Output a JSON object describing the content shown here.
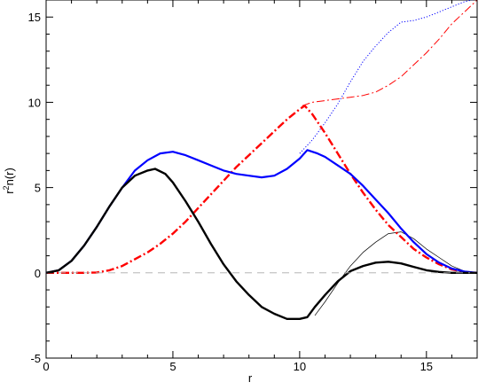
{
  "chart_data": {
    "type": "line",
    "xlabel": "r",
    "ylabel": "r²n(r)",
    "ylabel_base": "r",
    "ylabel_sup": "2",
    "ylabel_rest": "n(r)",
    "xlim": [
      0,
      17
    ],
    "ylim": [
      -5,
      16
    ],
    "xticks": [
      0,
      5,
      10,
      15
    ],
    "yticks": [
      -5,
      0,
      5,
      10,
      15
    ],
    "grid": false,
    "legend": "none",
    "series": [
      {
        "color": "#0000ff",
        "style": "dotted",
        "width": 1,
        "points": [
          [
            10,
            7.0
          ],
          [
            10.5,
            7.8
          ],
          [
            11,
            8.8
          ],
          [
            11.5,
            9.9
          ],
          [
            12,
            11.2
          ],
          [
            12.5,
            12.4
          ],
          [
            13,
            13.3
          ],
          [
            13.5,
            14.1
          ],
          [
            14,
            14.7
          ],
          [
            14.5,
            14.8
          ],
          [
            15,
            15.0
          ],
          [
            15.5,
            15.3
          ],
          [
            16,
            15.6
          ],
          [
            16.5,
            15.9
          ],
          [
            16.8,
            16.0
          ]
        ]
      },
      {
        "color": "#ff0000",
        "style": "dashdot",
        "width": 1,
        "points": [
          [
            10.1,
            9.8
          ],
          [
            10.5,
            10.0
          ],
          [
            11,
            10.1
          ],
          [
            11.5,
            10.2
          ],
          [
            12,
            10.3
          ],
          [
            12.5,
            10.4
          ],
          [
            13,
            10.6
          ],
          [
            13.5,
            11.0
          ],
          [
            14,
            11.5
          ],
          [
            14.5,
            12.2
          ],
          [
            15,
            12.9
          ],
          [
            15.5,
            13.7
          ],
          [
            16,
            14.6
          ],
          [
            16.5,
            15.3
          ],
          [
            17,
            16.0
          ]
        ]
      },
      {
        "color": "#000000",
        "style": "solid",
        "width": 0.7,
        "points": [
          [
            10.6,
            -2.5
          ],
          [
            11,
            -1.7
          ],
          [
            11.5,
            -0.6
          ],
          [
            12,
            0.4
          ],
          [
            12.5,
            1.2
          ],
          [
            13,
            1.8
          ],
          [
            13.5,
            2.3
          ],
          [
            14,
            2.4
          ],
          [
            14.5,
            2.0
          ],
          [
            15,
            1.4
          ],
          [
            15.5,
            0.9
          ],
          [
            16,
            0.4
          ],
          [
            16.5,
            0.1
          ],
          [
            17,
            0.0
          ]
        ]
      },
      {
        "color": "#ff0000",
        "style": "dashdot",
        "width": 2.4,
        "points": [
          [
            0,
            0
          ],
          [
            1,
            0.0
          ],
          [
            1.5,
            0.0
          ],
          [
            2,
            0.02
          ],
          [
            2.5,
            0.15
          ],
          [
            3,
            0.4
          ],
          [
            3.5,
            0.8
          ],
          [
            4,
            1.2
          ],
          [
            4.5,
            1.7
          ],
          [
            5,
            2.3
          ],
          [
            5.5,
            3.0
          ],
          [
            6,
            3.8
          ],
          [
            6.5,
            4.6
          ],
          [
            7,
            5.4
          ],
          [
            7.5,
            6.2
          ],
          [
            8,
            6.9
          ],
          [
            8.5,
            7.6
          ],
          [
            9,
            8.3
          ],
          [
            9.5,
            9.0
          ],
          [
            10,
            9.6
          ],
          [
            10.2,
            9.8
          ],
          [
            10.5,
            9.3
          ],
          [
            11,
            8.2
          ],
          [
            11.5,
            7.0
          ],
          [
            12,
            5.8
          ],
          [
            12.5,
            4.7
          ],
          [
            13,
            3.7
          ],
          [
            13.5,
            2.8
          ],
          [
            14,
            2.1
          ],
          [
            14.5,
            1.4
          ],
          [
            15,
            0.9
          ],
          [
            15.5,
            0.5
          ],
          [
            16,
            0.2
          ],
          [
            16.5,
            0.05
          ],
          [
            17,
            0.0
          ]
        ]
      },
      {
        "color": "#0000ff",
        "style": "solid",
        "width": 2.2,
        "points": [
          [
            0,
            0
          ],
          [
            0.5,
            0.15
          ],
          [
            1,
            0.7
          ],
          [
            1.5,
            1.6
          ],
          [
            2,
            2.7
          ],
          [
            2.5,
            3.9
          ],
          [
            3,
            5.0
          ],
          [
            3.5,
            6.0
          ],
          [
            4,
            6.6
          ],
          [
            4.5,
            7.0
          ],
          [
            5,
            7.1
          ],
          [
            5.5,
            6.9
          ],
          [
            6,
            6.6
          ],
          [
            6.5,
            6.3
          ],
          [
            7,
            6.0
          ],
          [
            7.5,
            5.8
          ],
          [
            8,
            5.7
          ],
          [
            8.5,
            5.6
          ],
          [
            9,
            5.7
          ],
          [
            9.5,
            6.1
          ],
          [
            10,
            6.7
          ],
          [
            10.3,
            7.2
          ],
          [
            10.7,
            7.0
          ],
          [
            11,
            6.8
          ],
          [
            11.5,
            6.3
          ],
          [
            12,
            5.8
          ],
          [
            12.5,
            5.1
          ],
          [
            13,
            4.3
          ],
          [
            13.5,
            3.5
          ],
          [
            14,
            2.6
          ],
          [
            14.5,
            1.8
          ],
          [
            15,
            1.1
          ],
          [
            15.5,
            0.6
          ],
          [
            16,
            0.25
          ],
          [
            16.5,
            0.08
          ],
          [
            17,
            0.0
          ]
        ]
      },
      {
        "color": "#000000",
        "style": "solid",
        "width": 2.4,
        "points": [
          [
            0,
            0
          ],
          [
            0.5,
            0.15
          ],
          [
            1,
            0.7
          ],
          [
            1.5,
            1.6
          ],
          [
            2,
            2.7
          ],
          [
            2.5,
            3.9
          ],
          [
            3,
            5.0
          ],
          [
            3.5,
            5.7
          ],
          [
            4,
            6.0
          ],
          [
            4.3,
            6.1
          ],
          [
            4.7,
            5.8
          ],
          [
            5,
            5.3
          ],
          [
            5.5,
            4.2
          ],
          [
            6,
            3.0
          ],
          [
            6.5,
            1.7
          ],
          [
            7,
            0.5
          ],
          [
            7.5,
            -0.5
          ],
          [
            8,
            -1.3
          ],
          [
            8.5,
            -2.0
          ],
          [
            9,
            -2.4
          ],
          [
            9.5,
            -2.7
          ],
          [
            10,
            -2.7
          ],
          [
            10.3,
            -2.6
          ],
          [
            10.6,
            -2.0
          ],
          [
            11,
            -1.3
          ],
          [
            11.5,
            -0.5
          ],
          [
            12,
            0.1
          ],
          [
            12.5,
            0.4
          ],
          [
            13,
            0.6
          ],
          [
            13.5,
            0.65
          ],
          [
            14,
            0.55
          ],
          [
            14.5,
            0.35
          ],
          [
            15,
            0.15
          ],
          [
            15.5,
            0.05
          ],
          [
            16,
            0.0
          ],
          [
            17,
            0.0
          ]
        ]
      },
      {
        "color": "#aaaaaa",
        "style": "dashed",
        "width": 0.8,
        "points": [
          [
            0,
            0
          ],
          [
            17,
            0
          ]
        ]
      }
    ]
  }
}
